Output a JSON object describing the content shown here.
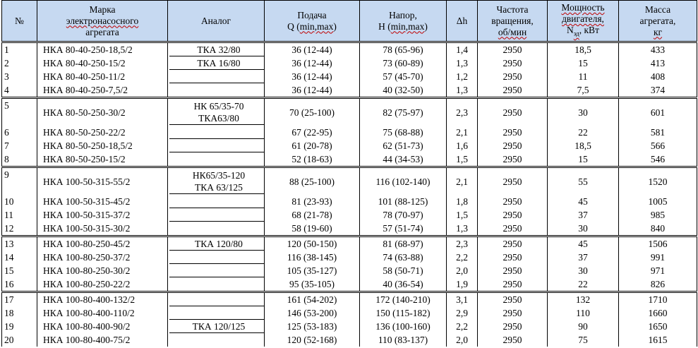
{
  "headers": {
    "no": "№",
    "mark_line1": "Марка",
    "mark_line2": "электронасосного",
    "mark_line3": "агрегата",
    "analog": "Аналог",
    "flow_line1": "Подача",
    "flow_line2_prefix": "Q (",
    "flow_line2_underlined": "min,max",
    "flow_line2_suffix": ")",
    "head_line1": "Напор,",
    "head_line2_prefix": "Н (",
    "head_line2_underlined": "min,max",
    "head_line2_suffix": ")",
    "dh": "Δh",
    "freq_line1": "Частота",
    "freq_line2": "вращения,",
    "freq_line3": "об/мин",
    "power_line1": "Мощность",
    "power_line2": "двигателя,",
    "power_line3_prefix": "N",
    "power_line3_sub": "эд",
    "power_line3_suffix": ", кВт",
    "mass_line1": "Масса",
    "mass_line2": "агрегата,",
    "mass_line3": "кг"
  },
  "rows": [
    {
      "no": "1",
      "mark": "НКА 80-40-250-18,5/2",
      "analog": "ТКА 32/80",
      "q": "36 (12-44)",
      "h": "78 (65-96)",
      "dh": "1,4",
      "n": "2950",
      "p": "18,5",
      "m": "433"
    },
    {
      "no": "2",
      "mark": "НКА 80-40-250-15/2",
      "analog": "ТКА 16/80",
      "q": "36 (12-44)",
      "h": "73 (60-89)",
      "dh": "1,3",
      "n": "2950",
      "p": "15",
      "m": "413"
    },
    {
      "no": "3",
      "mark": "НКА 80-40-250-11/2",
      "analog": "",
      "q": "36 (12-44)",
      "h": "57 (45-70)",
      "dh": "1,2",
      "n": "2950",
      "p": "11",
      "m": "408"
    },
    {
      "no": "4",
      "mark": "НКА 80-40-250-7,5/2",
      "analog": "",
      "q": "36 (12-44)",
      "h": "40 (32-50)",
      "dh": "1,3",
      "n": "2950",
      "p": "7,5",
      "m": "374"
    },
    {
      "no": "5",
      "mark": "НКА 80-50-250-30/2",
      "analog": "НК 65/35-70",
      "analog2": "ТКА63/80",
      "q": "70 (25-100)",
      "h": "82 (75-97)",
      "dh": "2,3",
      "n": "2950",
      "p": "30",
      "m": "601"
    },
    {
      "no": "6",
      "mark": "НКА 80-50-250-22/2",
      "analog": "",
      "q": "67 (22-95)",
      "h": "75 (68-88)",
      "dh": "2,1",
      "n": "2950",
      "p": "22",
      "m": "581"
    },
    {
      "no": "7",
      "mark": "НКА 80-50-250-18,5/2",
      "analog": "",
      "q": "61 (20-78)",
      "h": "62 (51-73)",
      "dh": "1,6",
      "n": "2950",
      "p": "18,5",
      "m": "566"
    },
    {
      "no": "8",
      "mark": "НКА 80-50-250-15/2",
      "analog": "",
      "q": "52 (18-63)",
      "h": "44 (34-53)",
      "dh": "1,5",
      "n": "2950",
      "p": "15",
      "m": "546"
    },
    {
      "no": "9",
      "mark": "НКА 100-50-315-55/2",
      "analog": "НК65/35-120",
      "analog2": "ТКА 63/125",
      "q": "88 (25-100)",
      "h": "116 (102-140)",
      "dh": "2,1",
      "n": "2950",
      "p": "55",
      "m": "1520"
    },
    {
      "no": "10",
      "mark": "НКА 100-50-315-45/2",
      "analog": "",
      "q": "81 (23-93)",
      "h": "101 (88-125)",
      "dh": "1,8",
      "n": "2950",
      "p": "45",
      "m": "1005"
    },
    {
      "no": "11",
      "mark": "НКА 100-50-315-37/2",
      "analog": "",
      "q": "68 (21-78)",
      "h": "78 (70-97)",
      "dh": "1,5",
      "n": "2950",
      "p": "37",
      "m": "985"
    },
    {
      "no": "12",
      "mark": "НКА 100-50-315-30/2",
      "analog": "",
      "q": "58 (19-60)",
      "h": "57 (51-74)",
      "dh": "1,3",
      "n": "2950",
      "p": "30",
      "m": "840"
    },
    {
      "no": "13",
      "mark": "НКА 100-80-250-45/2",
      "analog": "ТКА 120/80",
      "q": "120 (50-150)",
      "h": "81 (68-97)",
      "dh": "2,3",
      "n": "2950",
      "p": "45",
      "m": "1506"
    },
    {
      "no": "14",
      "mark": "НКА 100-80-250-37/2",
      "analog": "",
      "q": "116 (38-145)",
      "h": "74 (63-88)",
      "dh": "2,2",
      "n": "2950",
      "p": "37",
      "m": "991"
    },
    {
      "no": "15",
      "mark": "НКА 100-80-250-30/2",
      "analog": "",
      "q": "105 (35-127)",
      "h": "58 (50-71)",
      "dh": "2,0",
      "n": "2950",
      "p": "30",
      "m": "971"
    },
    {
      "no": "16",
      "mark": "НКА 100-80-250-22/2",
      "analog": "",
      "q": "95 (35-105)",
      "h": "40 (36-54)",
      "dh": "1,9",
      "n": "2950",
      "p": "22",
      "m": "826"
    },
    {
      "no": "17",
      "mark": "НКА 100-80-400-132/2",
      "analog": "",
      "q": "161 (54-202)",
      "h": "172 (140-210)",
      "dh": "3,1",
      "n": "2950",
      "p": "132",
      "m": "1710"
    },
    {
      "no": "18",
      "mark": "НКА 100-80-400-110/2",
      "analog": "",
      "q": "146 (53-200)",
      "h": "150 (115-182)",
      "dh": "2,9",
      "n": "2950",
      "p": "110",
      "m": "1660"
    },
    {
      "no": "19",
      "mark": "НКА 100-80-400-90/2",
      "analog": "ТКА 120/125",
      "q": "125 (53-183)",
      "h": "136 (100-160)",
      "dh": "2,2",
      "n": "2950",
      "p": "90",
      "m": "1650"
    },
    {
      "no": "20",
      "mark": "НКА 100-80-400-75/2",
      "analog": "",
      "q": "120 (52-168)",
      "h": "110 (83-137)",
      "dh": "2,0",
      "n": "2950",
      "p": "75",
      "m": "1615"
    }
  ]
}
